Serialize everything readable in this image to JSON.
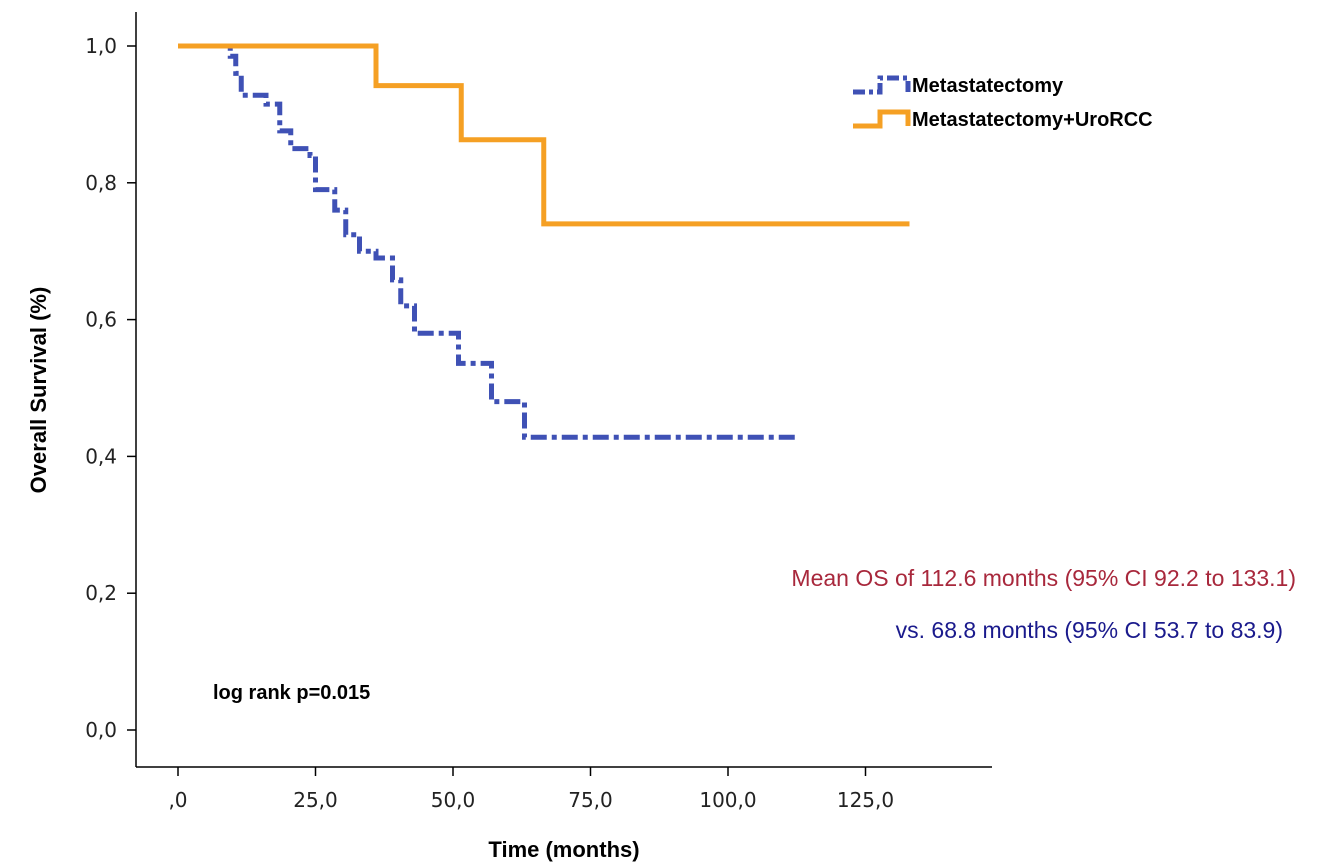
{
  "chart_data": {
    "type": "line",
    "subtype": "kaplan-meier",
    "xlabel": "Time (months)",
    "ylabel": "Overall Survival (%)",
    "xlim": [
      -8,
      148
    ],
    "ylim": [
      -0.05,
      1.05
    ],
    "x_ticks": [
      0,
      25,
      50,
      75,
      100,
      125
    ],
    "x_tick_labels": [
      ",0",
      "25,0",
      "50,0",
      "75,0",
      "100,0",
      "125,0"
    ],
    "y_ticks": [
      0,
      0.2,
      0.4,
      0.6,
      0.8,
      1.0
    ],
    "y_tick_labels": [
      "0,0",
      "0,2",
      "0,4",
      "0,6",
      "0,8",
      "1,0"
    ],
    "grid": false,
    "legend_position": "top-right",
    "series": [
      {
        "name": "Metastatectomy",
        "color": "#3f51b5",
        "line_style": "dash-dot",
        "step": true,
        "x": [
          0,
          9.5,
          10.5,
          11.5,
          16,
          18.5,
          20.5,
          24,
          25,
          28.5,
          30.5,
          33,
          36,
          39,
          40.5,
          43,
          51,
          52.5,
          57,
          63,
          113
        ],
        "y": [
          1.0,
          0.985,
          0.96,
          0.928,
          0.915,
          0.876,
          0.85,
          0.84,
          0.79,
          0.76,
          0.724,
          0.7,
          0.69,
          0.658,
          0.62,
          0.58,
          0.536,
          0.536,
          0.48,
          0.428,
          0.428
        ]
      },
      {
        "name": "Metastatectomy+UroRCC",
        "color": "#f5a024",
        "line_style": "solid",
        "step": true,
        "x": [
          0,
          36,
          51.5,
          66.5,
          133
        ],
        "y": [
          1.0,
          0.942,
          0.863,
          0.74,
          0.74
        ]
      }
    ],
    "annotations": [
      {
        "text": "log rank p=0.015",
        "color": "#000000"
      },
      {
        "text": "Mean OS of 112.6 months (95% CI 92.2 to 133.1)",
        "color": "#a8283c"
      },
      {
        "text": "vs. 68.8 months (95% CI 53.7 to 83.9)",
        "color": "#1a1a8c"
      }
    ]
  }
}
